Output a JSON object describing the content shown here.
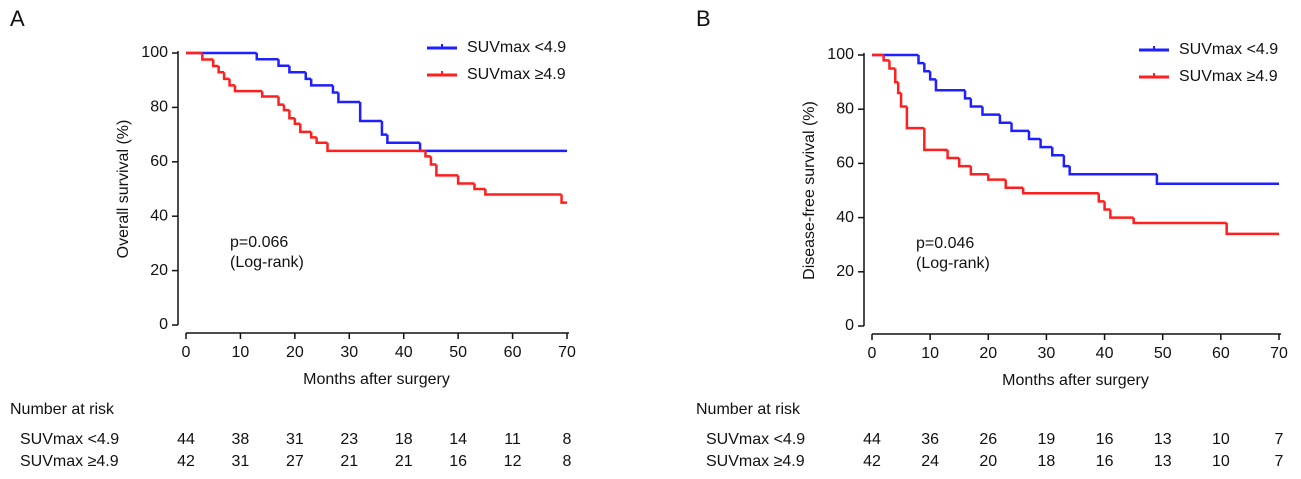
{
  "chart_data": [
    {
      "type": "step",
      "panel_label": "A",
      "xlabel": "Months after surgery",
      "ylabel": "Overall survival (%)",
      "annotation": [
        "p=0.066",
        "(Log-rank)"
      ],
      "xlim": [
        0,
        70
      ],
      "ylim": [
        0,
        100
      ],
      "xticks": [
        0,
        10,
        20,
        30,
        40,
        50,
        60,
        70
      ],
      "yticks": [
        0,
        20,
        40,
        60,
        80,
        100
      ],
      "legend": "upper right",
      "series": [
        {
          "name": "SUVmax <4.9",
          "color": "#1f1fff",
          "x": [
            0,
            13,
            17,
            19,
            22,
            23,
            27,
            28,
            32,
            36,
            37,
            43
          ],
          "values": [
            100,
            97.7,
            95.3,
            92.9,
            90.5,
            88.1,
            85.5,
            82,
            75,
            70,
            67,
            64
          ]
        },
        {
          "name": "SUVmax ≥4.9",
          "color": "#ff1f1f",
          "x": [
            0,
            3,
            5,
            6,
            7,
            8,
            9,
            14,
            17,
            18,
            19,
            20,
            21,
            23,
            24,
            26,
            44,
            45,
            46,
            50,
            53,
            55,
            69
          ],
          "values": [
            100,
            97.6,
            95.2,
            92.9,
            90.5,
            88.1,
            86,
            84,
            81,
            79,
            76,
            74,
            71,
            69,
            67,
            64,
            62,
            59,
            55,
            52,
            50,
            48,
            45
          ]
        }
      ],
      "risk_table": {
        "title": "Number at risk",
        "rows": [
          {
            "label": "SUVmax <4.9",
            "values": [
              44,
              38,
              31,
              23,
              18,
              14,
              11,
              8
            ]
          },
          {
            "label": "SUVmax ≥4.9",
            "values": [
              42,
              31,
              27,
              21,
              21,
              16,
              12,
              8
            ]
          }
        ]
      }
    },
    {
      "type": "step",
      "panel_label": "B",
      "xlabel": "Months after surgery",
      "ylabel": "Disease-free survival (%)",
      "annotation": [
        "p=0.046",
        "(Log-rank)"
      ],
      "xlim": [
        0,
        70
      ],
      "ylim": [
        0,
        100
      ],
      "xticks": [
        0,
        10,
        20,
        30,
        40,
        50,
        60,
        70
      ],
      "yticks": [
        0,
        20,
        40,
        60,
        80,
        100
      ],
      "legend": "upper right",
      "series": [
        {
          "name": "SUVmax <4.9",
          "color": "#1f1fff",
          "x": [
            0,
            8,
            9,
            10,
            11,
            16,
            17,
            19,
            22,
            24,
            27,
            29,
            31,
            33,
            34,
            49
          ],
          "values": [
            100,
            97,
            94,
            91,
            87,
            84,
            81,
            78,
            75,
            72,
            69,
            66,
            63,
            59,
            56,
            52.5
          ]
        },
        {
          "name": "SUVmax ≥4.9",
          "color": "#ff1f1f",
          "x": [
            0,
            2,
            3,
            4,
            4.5,
            5,
            6,
            9,
            13,
            15,
            17,
            20,
            23,
            26,
            39,
            40,
            41,
            45,
            61
          ],
          "values": [
            100,
            98,
            95,
            90,
            86,
            81,
            73,
            65,
            62,
            59,
            56,
            54,
            51,
            49,
            46,
            43,
            40,
            38,
            34
          ]
        }
      ],
      "risk_table": {
        "title": "Number at risk",
        "rows": [
          {
            "label": "SUVmax <4.9",
            "values": [
              44,
              36,
              26,
              19,
              16,
              13,
              10,
              7
            ]
          },
          {
            "label": "SUVmax ≥4.9",
            "values": [
              42,
              24,
              20,
              18,
              16,
              13,
              10,
              7
            ]
          }
        ]
      }
    }
  ]
}
